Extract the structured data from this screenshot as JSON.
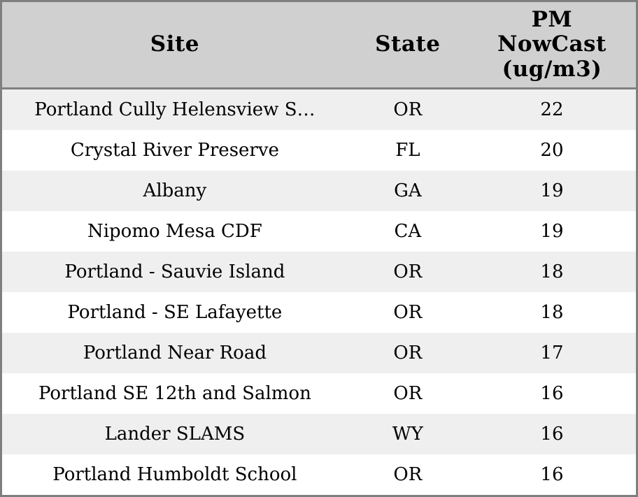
{
  "colors": {
    "header_bg": "#d0d0d0",
    "row_alt_bg": "#efefef",
    "row_bg": "#ffffff",
    "border": "#7f7f7f",
    "text": "#000000"
  },
  "table": {
    "headers": {
      "site": "Site",
      "state": "State",
      "pm": "PM NowCast (ug/m3)"
    }
  },
  "chart_data": {
    "type": "table",
    "columns": [
      "Site",
      "State",
      "PM NowCast (ug/m3)"
    ],
    "rows": [
      [
        "Portland Cully Helensview S…",
        "OR",
        22
      ],
      [
        "Crystal River Preserve",
        "FL",
        20
      ],
      [
        "Albany",
        "GA",
        19
      ],
      [
        "Nipomo Mesa CDF",
        "CA",
        19
      ],
      [
        "Portland - Sauvie Island",
        "OR",
        18
      ],
      [
        "Portland - SE Lafayette",
        "OR",
        18
      ],
      [
        "Portland Near Road",
        "OR",
        17
      ],
      [
        "Portland SE 12th and Salmon",
        "OR",
        16
      ],
      [
        "Lander SLAMS",
        "WY",
        16
      ],
      [
        "Portland Humboldt School",
        "OR",
        16
      ]
    ]
  }
}
